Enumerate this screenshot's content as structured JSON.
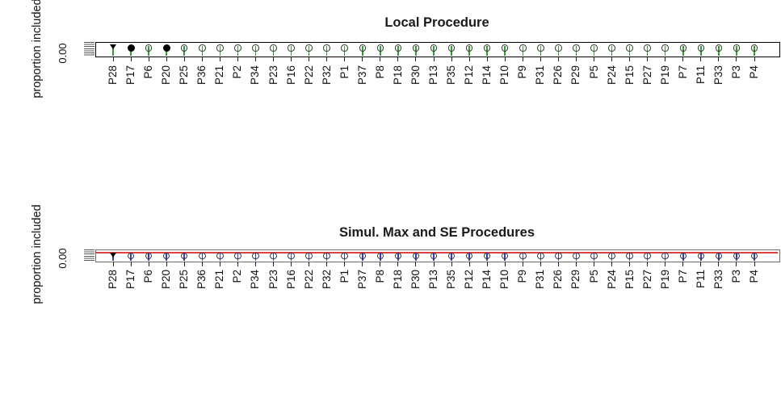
{
  "figure": {
    "background_color": "#ffffff",
    "text_color": "#111111"
  },
  "chart_data": [
    {
      "type": "scatter",
      "title": "Local Procedure",
      "xlabel": "",
      "ylabel": "proportion included",
      "visible_ytick_labels": [
        "0.00"
      ],
      "grid": "off",
      "legend": "none",
      "categories": [
        "P28",
        "P17",
        "P6",
        "P20",
        "P25",
        "P36",
        "P21",
        "P2",
        "P34",
        "P23",
        "P16",
        "P22",
        "P32",
        "P1",
        "P37",
        "P8",
        "P18",
        "P30",
        "P13",
        "P35",
        "P12",
        "P14",
        "P10",
        "P9",
        "P31",
        "P26",
        "P29",
        "P5",
        "P24",
        "P15",
        "P27",
        "P19",
        "P7",
        "P11",
        "P33",
        "P3",
        "P4"
      ],
      "values": [
        0,
        0,
        0,
        0,
        0,
        0,
        0,
        0,
        0,
        0,
        0,
        0,
        0,
        0,
        0,
        0,
        0,
        0,
        0,
        0,
        0,
        0,
        0,
        0,
        0,
        0,
        0,
        0,
        0,
        0,
        0,
        0,
        0,
        0,
        0,
        0,
        0
      ],
      "marker_styles": [
        "triangle-down-filled",
        "circle-filled",
        "circle-open",
        "circle-filled",
        "circle-open",
        "circle-open",
        "circle-open",
        "circle-open",
        "circle-open",
        "circle-open",
        "circle-open",
        "circle-open",
        "circle-open",
        "circle-open",
        "circle-open",
        "circle-open",
        "circle-open",
        "circle-open",
        "circle-open",
        "circle-open",
        "circle-open",
        "circle-open",
        "circle-open",
        "circle-open",
        "circle-open",
        "circle-open",
        "circle-open",
        "circle-open",
        "circle-open",
        "circle-open",
        "circle-open",
        "circle-open",
        "circle-open",
        "circle-open",
        "circle-open",
        "circle-open",
        "circle-open"
      ],
      "filled_points": [
        "P28",
        "P17",
        "P20"
      ],
      "stem_color": "#2f9f2f",
      "marker_outline_color": "#3c3c3c",
      "filled_marker_color": "#000000"
    },
    {
      "type": "scatter",
      "title": "Simul. Max and SE Procedures",
      "xlabel": "",
      "ylabel": "proportion included",
      "visible_ytick_labels": [
        "0.00"
      ],
      "grid": "off",
      "legend": "none",
      "categories": [
        "P28",
        "P17",
        "P6",
        "P20",
        "P25",
        "P36",
        "P21",
        "P2",
        "P34",
        "P23",
        "P16",
        "P22",
        "P32",
        "P1",
        "P37",
        "P8",
        "P18",
        "P30",
        "P13",
        "P35",
        "P12",
        "P14",
        "P10",
        "P9",
        "P31",
        "P26",
        "P29",
        "P5",
        "P24",
        "P15",
        "P27",
        "P19",
        "P7",
        "P11",
        "P33",
        "P3",
        "P4"
      ],
      "values": [
        0,
        0,
        0,
        0,
        0,
        0,
        0,
        0,
        0,
        0,
        0,
        0,
        0,
        0,
        0,
        0,
        0,
        0,
        0,
        0,
        0,
        0,
        0,
        0,
        0,
        0,
        0,
        0,
        0,
        0,
        0,
        0,
        0,
        0,
        0,
        0,
        0
      ],
      "marker_styles": [
        "triangle-down-filled",
        "circle-open",
        "circle-open",
        "circle-open",
        "circle-open",
        "circle-open",
        "circle-open",
        "circle-open",
        "circle-open",
        "circle-open",
        "circle-open",
        "circle-open",
        "circle-open",
        "circle-open",
        "circle-open",
        "circle-open",
        "circle-open",
        "circle-open",
        "circle-open",
        "circle-open",
        "circle-open",
        "circle-open",
        "circle-open",
        "circle-open",
        "circle-open",
        "circle-open",
        "circle-open",
        "circle-open",
        "circle-open",
        "circle-open",
        "circle-open",
        "circle-open",
        "circle-open",
        "circle-open",
        "circle-open",
        "circle-open",
        "circle-open"
      ],
      "filled_points": [
        "P28"
      ],
      "stem_color": "#3c3cc4",
      "marker_outline_color": "#3c3c3c",
      "filled_marker_color": "#000000",
      "reference_line": {
        "color": "#e04040",
        "position": "horizontal, near top of plot box, full width"
      }
    }
  ]
}
